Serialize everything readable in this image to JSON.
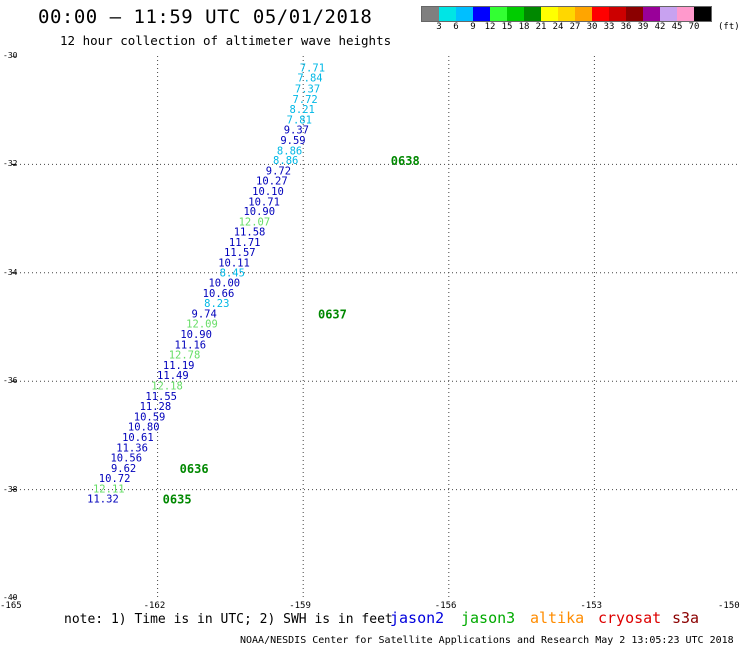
{
  "header": {
    "title": "00:00 – 11:59 UTC 05/01/2018",
    "subtitle": "12 hour collection of altimeter wave heights"
  },
  "colorbar": {
    "colors": [
      "#7f7f7f",
      "#00e5e5",
      "#00bfff",
      "#0000ff",
      "#33ff33",
      "#00cc00",
      "#008800",
      "#ffff00",
      "#ffd700",
      "#ffa500",
      "#ff0000",
      "#cc0000",
      "#8b0000",
      "#990099",
      "#c8a2f0",
      "#ff99cc",
      "#000000"
    ],
    "labels": [
      "3",
      "6",
      "9",
      "12",
      "15",
      "18",
      "21",
      "24",
      "27",
      "30",
      "33",
      "36",
      "39",
      "42",
      "45",
      "70"
    ],
    "unit": "(ft)"
  },
  "axes": {
    "x_ticks": [
      "-165",
      "-162",
      "-159",
      "-156",
      "-153",
      "-150"
    ],
    "y_ticks": [
      "-30",
      "-32",
      "-34",
      "-36",
      "-38",
      "-40"
    ],
    "xlim": [
      -165,
      -150
    ],
    "ylim": [
      -40,
      -30
    ]
  },
  "track": [
    {
      "v": "7.71",
      "lon": -158.55,
      "lat": -30.21,
      "c": "#00b8e6"
    },
    {
      "v": "7.84",
      "lon": -158.6,
      "lat": -30.4,
      "c": "#00b8e6"
    },
    {
      "v": "7.37",
      "lon": -158.65,
      "lat": -30.6,
      "c": "#00b8e6"
    },
    {
      "v": "7.72",
      "lon": -158.7,
      "lat": -30.79,
      "c": "#00b8e6"
    },
    {
      "v": "8.21",
      "lon": -158.76,
      "lat": -30.98,
      "c": "#00b8e6"
    },
    {
      "v": "7.81",
      "lon": -158.82,
      "lat": -31.17,
      "c": "#00b8e6"
    },
    {
      "v": "9.37",
      "lon": -158.88,
      "lat": -31.36,
      "c": "#0000bb"
    },
    {
      "v": "9.59",
      "lon": -158.95,
      "lat": -31.55,
      "c": "#0000bb"
    },
    {
      "v": "8.86",
      "lon": -159.02,
      "lat": -31.74,
      "c": "#00b8e6"
    },
    {
      "v": "8.86",
      "lon": -159.1,
      "lat": -31.92,
      "c": "#00b8e6"
    },
    {
      "v": "9.72",
      "lon": -159.25,
      "lat": -32.11,
      "c": "#0000bb"
    },
    {
      "v": "10.27",
      "lon": -159.32,
      "lat": -32.3,
      "c": "#0000bb"
    },
    {
      "v": "10.10",
      "lon": -159.4,
      "lat": -32.49,
      "c": "#0000bb"
    },
    {
      "v": "10.71",
      "lon": -159.48,
      "lat": -32.68,
      "c": "#0000bb"
    },
    {
      "v": "10.90",
      "lon": -159.58,
      "lat": -32.86,
      "c": "#0000bb"
    },
    {
      "v": "12.07",
      "lon": -159.68,
      "lat": -33.05,
      "c": "#66dd66"
    },
    {
      "v": "11.58",
      "lon": -159.78,
      "lat": -33.24,
      "c": "#0000bb"
    },
    {
      "v": "11.71",
      "lon": -159.88,
      "lat": -33.43,
      "c": "#0000bb"
    },
    {
      "v": "11.57",
      "lon": -159.98,
      "lat": -33.62,
      "c": "#0000bb"
    },
    {
      "v": "10.11",
      "lon": -160.1,
      "lat": -33.81,
      "c": "#0000bb"
    },
    {
      "v": "8.45",
      "lon": -160.2,
      "lat": -33.99,
      "c": "#00b8e6"
    },
    {
      "v": "10.00",
      "lon": -160.3,
      "lat": -34.18,
      "c": "#0000bb"
    },
    {
      "v": "10.66",
      "lon": -160.42,
      "lat": -34.37,
      "c": "#0000bb"
    },
    {
      "v": "8.23",
      "lon": -160.52,
      "lat": -34.56,
      "c": "#00b8e6"
    },
    {
      "v": "9.74",
      "lon": -160.78,
      "lat": -34.75,
      "c": "#0000bb"
    },
    {
      "v": "12.09",
      "lon": -160.76,
      "lat": -34.94,
      "c": "#66dd66"
    },
    {
      "v": "10.90",
      "lon": -160.88,
      "lat": -35.13,
      "c": "#0000bb"
    },
    {
      "v": "11.16",
      "lon": -161.0,
      "lat": -35.32,
      "c": "#0000bb"
    },
    {
      "v": "12.78",
      "lon": -161.12,
      "lat": -35.51,
      "c": "#66dd66"
    },
    {
      "v": "11.19",
      "lon": -161.24,
      "lat": -35.7,
      "c": "#0000bb"
    },
    {
      "v": "11.49",
      "lon": -161.36,
      "lat": -35.89,
      "c": "#0000bb"
    },
    {
      "v": "12.18",
      "lon": -161.48,
      "lat": -36.08,
      "c": "#66dd66"
    },
    {
      "v": "11.55",
      "lon": -161.6,
      "lat": -36.27,
      "c": "#0000bb"
    },
    {
      "v": "11.28",
      "lon": -161.72,
      "lat": -36.46,
      "c": "#0000bb"
    },
    {
      "v": "10.59",
      "lon": -161.84,
      "lat": -36.65,
      "c": "#0000bb"
    },
    {
      "v": "10.80",
      "lon": -161.96,
      "lat": -36.84,
      "c": "#0000bb"
    },
    {
      "v": "10.61",
      "lon": -162.08,
      "lat": -37.03,
      "c": "#0000bb"
    },
    {
      "v": "11.36",
      "lon": -162.2,
      "lat": -37.22,
      "c": "#0000bb"
    },
    {
      "v": "10.56",
      "lon": -162.32,
      "lat": -37.41,
      "c": "#0000bb"
    },
    {
      "v": "9.62",
      "lon": -162.44,
      "lat": -37.6,
      "c": "#0000bb"
    },
    {
      "v": "10.72",
      "lon": -162.56,
      "lat": -37.79,
      "c": "#0000bb"
    },
    {
      "v": "12.11",
      "lon": -162.68,
      "lat": -37.98,
      "c": "#66dd66"
    },
    {
      "v": "11.32",
      "lon": -162.8,
      "lat": -38.16,
      "c": "#0000bb"
    }
  ],
  "time_labels": [
    {
      "t": "0638",
      "lon": -156.6,
      "lat": -31.92
    },
    {
      "t": "0637",
      "lon": -158.1,
      "lat": -34.75
    },
    {
      "t": "0636",
      "lon": -160.95,
      "lat": -37.6
    },
    {
      "t": "0635",
      "lon": -161.3,
      "lat": -38.16
    }
  ],
  "note": "note: 1) Time is in UTC; 2) SWH is in feet",
  "satellites": [
    {
      "name": "jason2",
      "color": "#0000dd"
    },
    {
      "name": "jason3",
      "color": "#00aa00"
    },
    {
      "name": "altika",
      "color": "#ff8c00"
    },
    {
      "name": "cryosat",
      "color": "#dd0000"
    },
    {
      "name": "s3a",
      "color": "#8b0000"
    }
  ],
  "footer": "NOAA/NESDIS Center for Satellite Applications and Research   May  2 13:05:23 UTC 2018"
}
